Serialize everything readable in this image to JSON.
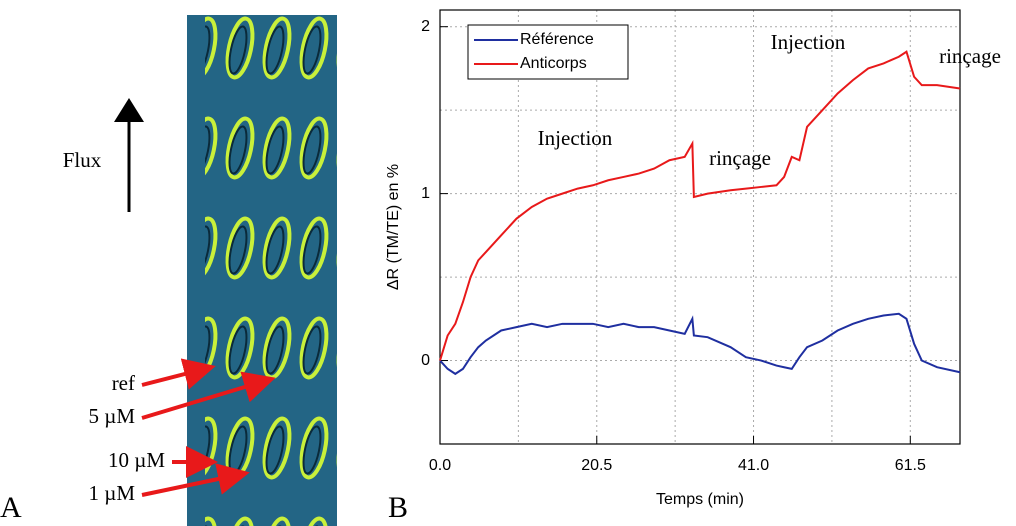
{
  "panel_a": {
    "label": "A",
    "flow_label": "Flux",
    "arrow_labels": [
      "ref",
      "5 µM",
      "10 µM",
      "1 µM"
    ]
  },
  "chart_data": {
    "type": "line",
    "panel_label": "B",
    "x_label": "Temps (min)",
    "y_label": "ΔR (TM/TE) en %",
    "x": [
      0,
      1,
      2,
      3,
      4,
      5,
      6,
      8,
      10,
      12,
      14,
      16,
      18,
      20,
      22,
      24,
      26,
      28,
      30,
      32,
      33,
      33.2,
      35,
      38,
      40,
      42,
      44,
      45,
      46,
      47,
      48,
      50,
      52,
      54,
      56,
      58,
      60,
      61,
      62,
      63,
      65,
      68
    ],
    "series": [
      {
        "name": "Référence",
        "color": "#1f2fa0",
        "values": [
          0,
          -0.05,
          -0.08,
          -0.05,
          0.02,
          0.08,
          0.12,
          0.18,
          0.2,
          0.22,
          0.2,
          0.22,
          0.22,
          0.22,
          0.2,
          0.22,
          0.2,
          0.2,
          0.18,
          0.16,
          0.25,
          0.15,
          0.14,
          0.08,
          0.02,
          0.0,
          -0.03,
          -0.04,
          -0.05,
          0.02,
          0.08,
          0.12,
          0.18,
          0.22,
          0.25,
          0.27,
          0.28,
          0.25,
          0.1,
          0.0,
          -0.04,
          -0.07
        ]
      },
      {
        "name": "Anticorps",
        "color": "#e8191a",
        "values": [
          0.0,
          0.15,
          0.22,
          0.35,
          0.5,
          0.6,
          0.65,
          0.75,
          0.85,
          0.92,
          0.97,
          1.0,
          1.03,
          1.05,
          1.08,
          1.1,
          1.12,
          1.15,
          1.2,
          1.22,
          1.3,
          0.98,
          1.0,
          1.02,
          1.03,
          1.04,
          1.05,
          1.1,
          1.22,
          1.2,
          1.4,
          1.5,
          1.6,
          1.68,
          1.75,
          1.78,
          1.82,
          1.85,
          1.7,
          1.65,
          1.65,
          1.63
        ]
      }
    ],
    "xlim": [
      0,
      68
    ],
    "ylim": [
      -0.5,
      2.1
    ],
    "xticks": [
      {
        "value": 0,
        "label": "0.0"
      },
      20.5,
      {
        "value": 41,
        "label": "41.0"
      },
      61.5
    ],
    "yticks": [
      0,
      1,
      2
    ],
    "x_minor_ticks": [
      10.25,
      30.75,
      51.25
    ],
    "y_minor_ticks": [
      0.5,
      1.5
    ],
    "grid": true,
    "legend": "upper left",
    "annotations": [
      "Injection",
      "rinçage",
      "Injection",
      "rinçage"
    ]
  }
}
